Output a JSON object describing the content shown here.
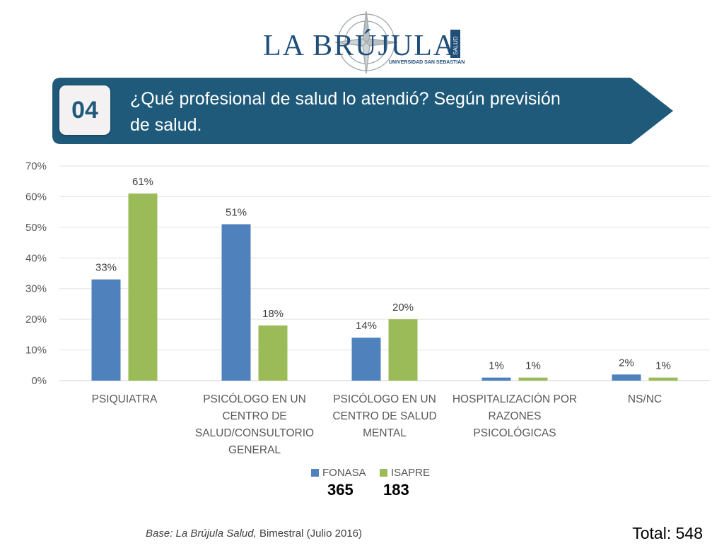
{
  "logo": {
    "text": "LA BRÚJULA",
    "sub": "UNIVERSIDAD SAN SEBASTIÁN",
    "side": "SALUD"
  },
  "banner": {
    "number": "04",
    "title": "¿Qué profesional de salud lo atendió? Según previsión de salud.",
    "color": "#1f5a7a"
  },
  "chart_data": {
    "type": "bar",
    "categories": [
      [
        "PSIQUIATRA"
      ],
      [
        "PSICÓLOGO EN UN",
        "CENTRO DE",
        "SALUD/CONSULTORIO",
        "GENERAL"
      ],
      [
        "PSICÓLOGO EN UN",
        "CENTRO DE SALUD",
        "MENTAL"
      ],
      [
        "HOSPITALIZACIÓN POR",
        "RAZONES",
        "PSICOLÓGICAS"
      ],
      [
        "NS/NC"
      ]
    ],
    "series": [
      {
        "name": "FONASA",
        "values": [
          33,
          51,
          14,
          1,
          2
        ],
        "labels": [
          "33%",
          "51%",
          "14%",
          "1%",
          "2%"
        ],
        "color": "#4f81bd"
      },
      {
        "name": "ISAPRE",
        "values": [
          61,
          18,
          20,
          1,
          1
        ],
        "labels": [
          "61%",
          "18%",
          "20%",
          "1%",
          "1%"
        ],
        "color": "#9bbb59"
      }
    ],
    "ylim": [
      0,
      70
    ],
    "yticks": [
      "0%",
      "10%",
      "20%",
      "30%",
      "40%",
      "50%",
      "60%",
      "70%"
    ],
    "grid": true,
    "legend_position": "bottom"
  },
  "legend": {
    "fonasa_label": "FONASA",
    "isapre_label": "ISAPRE",
    "fonasa_n": "365",
    "isapre_n": "183"
  },
  "source": {
    "prefix": "Base: La Brújula Salud,",
    "rest": " Bimestral (Julio 2016)"
  },
  "total": "Total: 548"
}
